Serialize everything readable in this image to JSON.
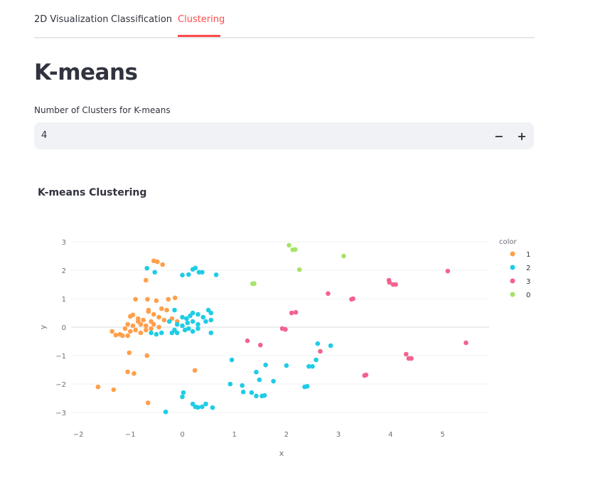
{
  "tabs": [
    {
      "label": "2D Visualization",
      "active": false
    },
    {
      "label": "Classification",
      "active": false
    },
    {
      "label": "Clustering",
      "active": true
    }
  ],
  "page": {
    "title": "K-means",
    "input_label": "Number of Clusters for K-means",
    "input_value": "4",
    "minus_icon": "minus-icon",
    "plus_icon": "plus-icon"
  },
  "chart_title": "K-means Clustering",
  "colors": {
    "accent": "#ff4b4b",
    "1": "#ff9f4a",
    "2": "#1fcce6",
    "3": "#f4628e",
    "0": "#a6e36a"
  },
  "chart_data": {
    "type": "scatter",
    "title": "",
    "xlabel": "x",
    "ylabel": "y",
    "xlim": [
      -2.1,
      5.9
    ],
    "ylim": [
      -3.3,
      3.2
    ],
    "xticks": [
      "−2",
      "−1",
      "0",
      "1",
      "2",
      "3",
      "4",
      "5"
    ],
    "yticks": [
      "3",
      "2",
      "1",
      "0",
      "−1",
      "−2",
      "−3"
    ],
    "grid": true,
    "legend_title": "color",
    "legend_position": "right",
    "series": [
      {
        "name": "1",
        "points": [
          [
            -0.55,
            2.33
          ],
          [
            -0.48,
            2.3
          ],
          [
            -0.38,
            2.2
          ],
          [
            -0.7,
            1.65
          ],
          [
            -0.9,
            0.98
          ],
          [
            -0.67,
            0.98
          ],
          [
            -0.5,
            0.93
          ],
          [
            -0.27,
            0.98
          ],
          [
            -0.14,
            1.03
          ],
          [
            -0.4,
            0.65
          ],
          [
            -0.3,
            0.6
          ],
          [
            -0.65,
            0.55
          ],
          [
            -0.55,
            0.45
          ],
          [
            -0.45,
            0.35
          ],
          [
            -0.95,
            0.43
          ],
          [
            -1.0,
            0.38
          ],
          [
            -0.85,
            0.3
          ],
          [
            -0.75,
            0.25
          ],
          [
            -0.6,
            0.2
          ],
          [
            -0.35,
            0.25
          ],
          [
            -0.2,
            0.3
          ],
          [
            -1.05,
            0.1
          ],
          [
            -0.95,
            0.05
          ],
          [
            -0.8,
            0.1
          ],
          [
            -0.7,
            0.05
          ],
          [
            -0.55,
            0.1
          ],
          [
            -0.45,
            0.0
          ],
          [
            -1.1,
            -0.05
          ],
          [
            -1.0,
            -0.15
          ],
          [
            -0.9,
            -0.1
          ],
          [
            -0.8,
            -0.2
          ],
          [
            -0.7,
            -0.1
          ],
          [
            -0.6,
            -0.05
          ],
          [
            -1.2,
            -0.25
          ],
          [
            -1.15,
            -0.3
          ],
          [
            -1.05,
            -0.3
          ],
          [
            -0.65,
            0.6
          ],
          [
            -0.1,
            0.2
          ],
          [
            -1.35,
            -0.15
          ],
          [
            -1.28,
            -0.28
          ],
          [
            -1.02,
            -0.9
          ],
          [
            -0.68,
            -1.0
          ],
          [
            -1.05,
            -1.57
          ],
          [
            -0.93,
            -1.63
          ],
          [
            0.24,
            -1.52
          ],
          [
            -1.62,
            -2.1
          ],
          [
            -1.32,
            -2.2
          ],
          [
            -0.66,
            -2.66
          ],
          [
            -0.85,
            0.2
          ]
        ]
      },
      {
        "name": "2",
        "points": [
          [
            -0.68,
            2.07
          ],
          [
            -0.53,
            1.93
          ],
          [
            0.0,
            1.83
          ],
          [
            0.12,
            1.85
          ],
          [
            0.2,
            2.03
          ],
          [
            0.25,
            2.08
          ],
          [
            0.32,
            1.93
          ],
          [
            0.38,
            1.93
          ],
          [
            0.65,
            1.84
          ],
          [
            -0.15,
            0.6
          ],
          [
            0.0,
            0.35
          ],
          [
            0.08,
            0.3
          ],
          [
            0.15,
            0.4
          ],
          [
            0.2,
            0.5
          ],
          [
            0.3,
            0.45
          ],
          [
            0.4,
            0.35
          ],
          [
            0.5,
            0.6
          ],
          [
            0.55,
            0.5
          ],
          [
            -0.25,
            0.2
          ],
          [
            -0.1,
            0.1
          ],
          [
            0.0,
            0.05
          ],
          [
            0.1,
            0.15
          ],
          [
            0.2,
            0.2
          ],
          [
            0.3,
            0.1
          ],
          [
            0.45,
            0.2
          ],
          [
            0.55,
            0.25
          ],
          [
            -0.15,
            -0.1
          ],
          [
            0.05,
            -0.1
          ],
          [
            0.2,
            -0.15
          ],
          [
            0.3,
            -0.05
          ],
          [
            -0.2,
            -0.2
          ],
          [
            -0.1,
            -0.2
          ],
          [
            0.12,
            -0.05
          ],
          [
            0.55,
            -0.2
          ],
          [
            -0.6,
            -0.2
          ],
          [
            -0.5,
            -0.25
          ],
          [
            -0.4,
            -0.2
          ],
          [
            0.02,
            -2.3
          ],
          [
            0.0,
            -2.45
          ],
          [
            0.2,
            -2.7
          ],
          [
            0.25,
            -2.8
          ],
          [
            0.3,
            -2.82
          ],
          [
            0.38,
            -2.8
          ],
          [
            0.45,
            -2.7
          ],
          [
            0.58,
            -2.83
          ],
          [
            -0.32,
            -2.98
          ],
          [
            0.95,
            -1.15
          ],
          [
            0.92,
            -2.0
          ],
          [
            1.15,
            -2.05
          ],
          [
            1.17,
            -2.28
          ],
          [
            1.33,
            -2.3
          ],
          [
            1.42,
            -2.42
          ],
          [
            1.42,
            -1.58
          ],
          [
            1.48,
            -1.85
          ],
          [
            1.58,
            -2.4
          ],
          [
            1.6,
            -1.33
          ],
          [
            1.75,
            -1.9
          ],
          [
            1.53,
            -2.42
          ],
          [
            2.0,
            -1.35
          ],
          [
            2.35,
            -2.1
          ],
          [
            2.4,
            -2.08
          ],
          [
            2.43,
            -1.38
          ],
          [
            2.5,
            -1.38
          ],
          [
            2.57,
            -1.15
          ],
          [
            2.6,
            -0.58
          ],
          [
            2.85,
            -0.65
          ]
        ]
      },
      {
        "name": "3",
        "points": [
          [
            1.92,
            -0.05
          ],
          [
            1.98,
            -0.08
          ],
          [
            2.1,
            0.5
          ],
          [
            2.18,
            0.52
          ],
          [
            1.25,
            -0.48
          ],
          [
            1.5,
            -0.63
          ],
          [
            2.65,
            -0.85
          ],
          [
            2.8,
            1.18
          ],
          [
            3.25,
            0.98
          ],
          [
            3.28,
            1.0
          ],
          [
            3.5,
            -1.7
          ],
          [
            3.53,
            -1.68
          ],
          [
            3.97,
            1.65
          ],
          [
            3.98,
            1.57
          ],
          [
            4.05,
            1.5
          ],
          [
            4.1,
            1.5
          ],
          [
            4.3,
            -0.95
          ],
          [
            4.35,
            -1.1
          ],
          [
            4.4,
            -1.1
          ],
          [
            5.1,
            1.97
          ],
          [
            5.45,
            -0.55
          ]
        ]
      },
      {
        "name": "0",
        "points": [
          [
            2.05,
            2.88
          ],
          [
            2.12,
            2.72
          ],
          [
            2.17,
            2.73
          ],
          [
            1.35,
            1.53
          ],
          [
            1.38,
            1.53
          ],
          [
            2.25,
            2.02
          ],
          [
            3.1,
            2.5
          ]
        ]
      }
    ]
  }
}
